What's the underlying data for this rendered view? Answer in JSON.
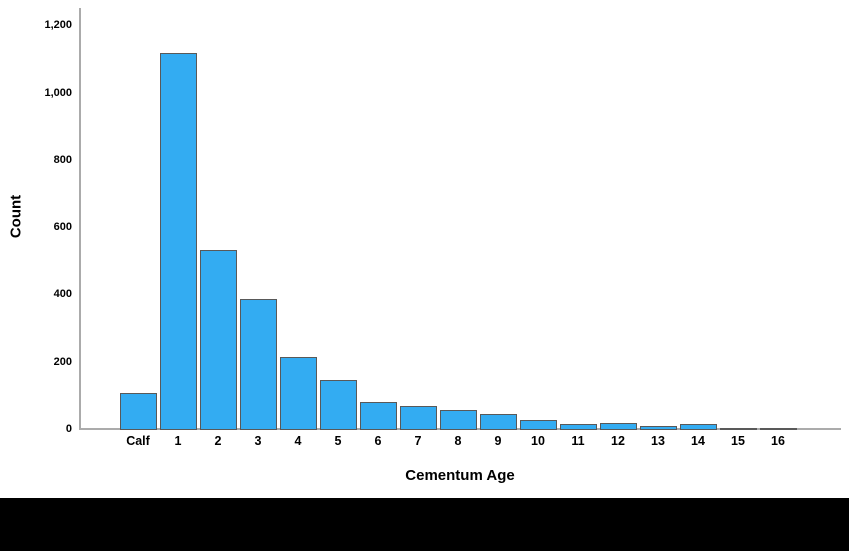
{
  "chart_data": {
    "type": "bar",
    "title": "",
    "categories": [
      "Calf",
      "1",
      "2",
      "3",
      "4",
      "5",
      "6",
      "7",
      "8",
      "9",
      "10",
      "11",
      "12",
      "13",
      "14",
      "15",
      "16"
    ],
    "values": [
      110,
      1120,
      535,
      390,
      217,
      149,
      82,
      70,
      58,
      47,
      30,
      18,
      20,
      12,
      17,
      7,
      2
    ],
    "xlabel": "Cementum Age",
    "ylabel": "Count",
    "ylim": [
      0,
      1250
    ],
    "yticks": [
      0,
      200,
      400,
      600,
      800,
      1000,
      1200
    ],
    "ytick_labels": [
      "0",
      "200",
      "400",
      "600",
      "800",
      "1,000",
      "1,200"
    ],
    "grid": false,
    "legend": "none",
    "colors": {
      "bar_fill": "#33ACF2",
      "bar_border": "#595959",
      "axis_line": "#ABABAB",
      "text": "#000000",
      "background": "#FFFFFF",
      "footer": "#000000"
    }
  }
}
